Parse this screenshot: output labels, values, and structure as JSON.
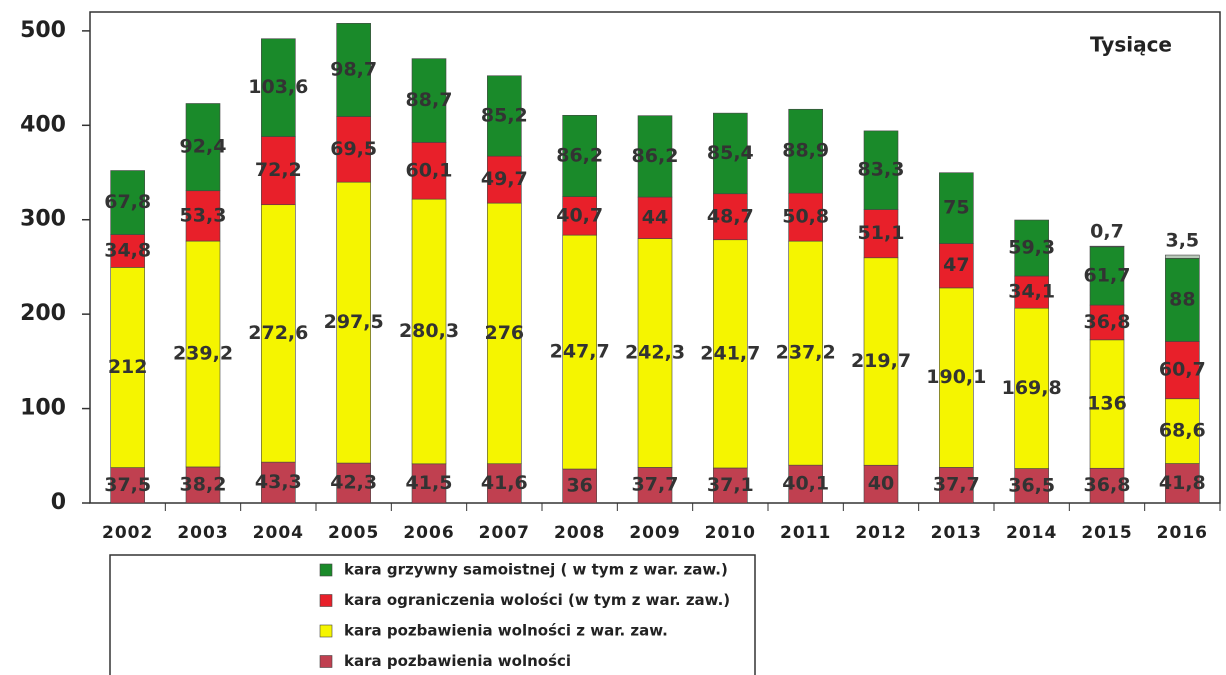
{
  "chart_data": {
    "type": "stacked_bar",
    "annotation": "Tysiące",
    "categories": [
      "2002",
      "2003",
      "2004",
      "2005",
      "2006",
      "2007",
      "2008",
      "2009",
      "2010",
      "2011",
      "2012",
      "2013",
      "2014",
      "2015",
      "2016"
    ],
    "series": [
      {
        "name": "kara pozbawienia wolności",
        "color": "#c04050",
        "values": [
          37.5,
          38.2,
          43.3,
          42.3,
          41.5,
          41.6,
          36,
          37.7,
          37.1,
          40.1,
          40,
          37.7,
          36.5,
          36.8,
          41.8
        ],
        "value_labels": [
          "37,5",
          "38,2",
          "43,3",
          "42,3",
          "41,5",
          "41,6",
          "36",
          "37,7",
          "37,1",
          "40,1",
          "40",
          "37,7",
          "36,5",
          "36,8",
          "41,8"
        ]
      },
      {
        "name": "kara pozbawienia wolności z war. zaw.",
        "color": "#f5f500",
        "values": [
          212,
          239.2,
          272.6,
          297.5,
          280.3,
          276,
          247.7,
          242.3,
          241.7,
          237.2,
          219.7,
          190.1,
          169.8,
          136,
          68.6
        ],
        "value_labels": [
          "212",
          "239,2",
          "272,6",
          "297,5",
          "280,3",
          "276",
          "247,7",
          "242,3",
          "241,7",
          "237,2",
          "219,7",
          "190,1",
          "169,8",
          "136",
          "68,6"
        ]
      },
      {
        "name": "kara ograniczenia wolości  (w tym z war. zaw.)",
        "color": "#e8202a",
        "values": [
          34.8,
          53.3,
          72.2,
          69.5,
          60.1,
          49.7,
          40.7,
          44,
          48.7,
          50.8,
          51.1,
          47,
          34.1,
          36.8,
          60.7
        ],
        "value_labels": [
          "34,8",
          "53,3",
          "72,2",
          "69,5",
          "60,1",
          "49,7",
          "40,7",
          "44",
          "48,7",
          "50,8",
          "51,1",
          "47",
          "34,1",
          "36,8",
          "60,7"
        ]
      },
      {
        "name": "kara grzywny samoistnej  ( w tym z war. zaw.)",
        "color": "#1a8a2a",
        "values": [
          67.8,
          92.4,
          103.6,
          98.7,
          88.7,
          85.2,
          86.2,
          86.2,
          85.4,
          88.9,
          83.3,
          75,
          59.3,
          61.7,
          88
        ],
        "value_labels": [
          "67,8",
          "92,4",
          "103,6",
          "98,7",
          "88,7",
          "85,2",
          "86,2",
          "86,2",
          "85,4",
          "88,9",
          "83,3",
          "75",
          "59,3",
          "61,7",
          "88"
        ]
      },
      {
        "color": "#b8c8b8",
        "values": [
          null,
          null,
          null,
          null,
          null,
          null,
          null,
          null,
          null,
          null,
          null,
          null,
          null,
          0.7,
          3.5
        ],
        "value_labels": [
          null,
          null,
          null,
          null,
          null,
          null,
          null,
          null,
          null,
          null,
          null,
          null,
          null,
          "0,7",
          "3,5"
        ]
      }
    ],
    "ylim": [
      0,
      520
    ],
    "yticks": [
      0,
      100,
      200,
      300,
      400,
      500
    ],
    "grid": false
  }
}
